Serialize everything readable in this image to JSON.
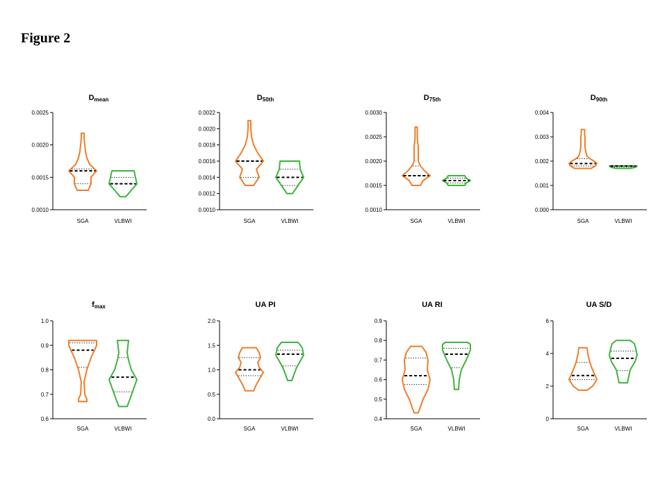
{
  "figure_title": "Figure 2",
  "colors": {
    "sga": "#f07d28",
    "vlbwi": "#3cb43c",
    "axis": "#000000"
  },
  "chart_data": [
    {
      "type": "violin",
      "title": "D",
      "title_sub": "mean",
      "ylim": [
        0.001,
        0.0025
      ],
      "yticks": [
        "0.0010",
        "0.0015",
        "0.0020",
        "0.0025"
      ],
      "categories": [
        "SGA",
        "VLBWI"
      ],
      "series": [
        {
          "name": "SGA",
          "min": 0.0013,
          "max": 0.00218,
          "q1": 0.0014,
          "median": 0.0016,
          "q3": 0.00163,
          "profile": [
            [
              0.0013,
              0.4
            ],
            [
              0.00135,
              0.5
            ],
            [
              0.0014,
              0.6
            ],
            [
              0.0015,
              0.6
            ],
            [
              0.0016,
              1.0
            ],
            [
              0.0017,
              0.5
            ],
            [
              0.0018,
              0.3
            ],
            [
              0.0019,
              0.2
            ],
            [
              0.002,
              0.15
            ],
            [
              0.0021,
              0.1
            ],
            [
              0.00218,
              0.1
            ]
          ]
        },
        {
          "name": "VLBWI",
          "min": 0.0012,
          "max": 0.0016,
          "q1": 0.0014,
          "median": 0.0014,
          "q3": 0.0015,
          "profile": [
            [
              0.0012,
              0.2
            ],
            [
              0.0013,
              0.6
            ],
            [
              0.0014,
              1.0
            ],
            [
              0.0015,
              0.9
            ],
            [
              0.0016,
              0.8
            ]
          ]
        }
      ]
    },
    {
      "type": "violin",
      "title": "D",
      "title_sub": "50th",
      "ylim": [
        0.001,
        0.0022
      ],
      "yticks": [
        "0.0010",
        "0.0012",
        "0.0014",
        "0.0016",
        "0.0018",
        "0.0020",
        "0.0022"
      ],
      "categories": [
        "SGA",
        "VLBWI"
      ],
      "series": [
        {
          "name": "SGA",
          "min": 0.0013,
          "max": 0.0021,
          "q1": 0.0014,
          "median": 0.0016,
          "q3": 0.0016,
          "profile": [
            [
              0.0013,
              0.3
            ],
            [
              0.00135,
              0.5
            ],
            [
              0.0014,
              0.7
            ],
            [
              0.0015,
              0.5
            ],
            [
              0.0016,
              1.0
            ],
            [
              0.0017,
              0.6
            ],
            [
              0.0018,
              0.3
            ],
            [
              0.0019,
              0.15
            ],
            [
              0.002,
              0.1
            ],
            [
              0.0021,
              0.1
            ]
          ]
        },
        {
          "name": "VLBWI",
          "min": 0.0012,
          "max": 0.0016,
          "q1": 0.0013,
          "median": 0.0014,
          "q3": 0.0015,
          "profile": [
            [
              0.0012,
              0.2
            ],
            [
              0.0013,
              0.6
            ],
            [
              0.0014,
              1.0
            ],
            [
              0.0015,
              0.75
            ],
            [
              0.0016,
              0.7
            ]
          ]
        }
      ]
    },
    {
      "type": "violin",
      "title": "D",
      "title_sub": "75th",
      "ylim": [
        0.001,
        0.003
      ],
      "yticks": [
        "0.0010",
        "0.0015",
        "0.0020",
        "0.0025",
        "0.0030"
      ],
      "categories": [
        "SGA",
        "VLBWI"
      ],
      "series": [
        {
          "name": "SGA",
          "min": 0.0015,
          "max": 0.0027,
          "q1": 0.0017,
          "median": 0.0017,
          "q3": 0.0019,
          "profile": [
            [
              0.0015,
              0.3
            ],
            [
              0.0016,
              0.5
            ],
            [
              0.0017,
              1.0
            ],
            [
              0.0018,
              0.6
            ],
            [
              0.0019,
              0.3
            ],
            [
              0.002,
              0.15
            ],
            [
              0.0021,
              0.15
            ],
            [
              0.0022,
              0.15
            ],
            [
              0.0023,
              0.15
            ],
            [
              0.0024,
              0.1
            ],
            [
              0.0025,
              0.08
            ],
            [
              0.0026,
              0.08
            ],
            [
              0.0027,
              0.08
            ]
          ]
        },
        {
          "name": "VLBWI",
          "min": 0.0015,
          "max": 0.0017,
          "q1": 0.00155,
          "median": 0.0016,
          "q3": 0.00165,
          "profile": [
            [
              0.0015,
              0.6
            ],
            [
              0.00155,
              0.7
            ],
            [
              0.0016,
              1.0
            ],
            [
              0.00165,
              0.7
            ],
            [
              0.0017,
              0.6
            ]
          ]
        }
      ]
    },
    {
      "type": "violin",
      "title": "D",
      "title_sub": "90th",
      "ylim": [
        0,
        0.004
      ],
      "yticks": [
        "0.000",
        "0.001",
        "0.002",
        "0.003",
        "0.004"
      ],
      "categories": [
        "SGA",
        "VLBWI"
      ],
      "series": [
        {
          "name": "SGA",
          "min": 0.0017,
          "max": 0.0033,
          "q1": 0.0018,
          "median": 0.0019,
          "q3": 0.0021,
          "profile": [
            [
              0.0017,
              0.6
            ],
            [
              0.0018,
              0.9
            ],
            [
              0.0019,
              1.0
            ],
            [
              0.002,
              0.8
            ],
            [
              0.0021,
              0.5
            ],
            [
              0.0022,
              0.3
            ],
            [
              0.0024,
              0.2
            ],
            [
              0.0026,
              0.15
            ],
            [
              0.0028,
              0.15
            ],
            [
              0.003,
              0.15
            ],
            [
              0.0031,
              0.12
            ],
            [
              0.0033,
              0.12
            ]
          ]
        },
        {
          "name": "VLBWI",
          "min": 0.0017,
          "max": 0.0018,
          "q1": 0.00175,
          "median": 0.0018,
          "q3": 0.0018,
          "profile": [
            [
              0.0017,
              0.5
            ],
            [
              0.00175,
              0.9
            ],
            [
              0.0018,
              1.0
            ]
          ]
        }
      ]
    },
    {
      "type": "violin",
      "title": "f",
      "title_sub": "max",
      "ylim": [
        0.6,
        1.0
      ],
      "yticks": [
        "0.6",
        "0.7",
        "0.8",
        "0.9",
        "1.0"
      ],
      "categories": [
        "SGA",
        "VLBWI"
      ],
      "series": [
        {
          "name": "SGA",
          "min": 0.67,
          "max": 0.92,
          "q1": 0.81,
          "median": 0.88,
          "q3": 0.91,
          "profile": [
            [
              0.67,
              0.3
            ],
            [
              0.68,
              0.3
            ],
            [
              0.7,
              0.15
            ],
            [
              0.75,
              0.1
            ],
            [
              0.8,
              0.3
            ],
            [
              0.85,
              0.6
            ],
            [
              0.88,
              0.85
            ],
            [
              0.9,
              1.0
            ],
            [
              0.92,
              1.0
            ]
          ]
        },
        {
          "name": "VLBWI",
          "min": 0.65,
          "max": 0.92,
          "q1": 0.71,
          "median": 0.77,
          "q3": 0.85,
          "profile": [
            [
              0.65,
              0.3
            ],
            [
              0.68,
              0.5
            ],
            [
              0.72,
              0.75
            ],
            [
              0.76,
              1.0
            ],
            [
              0.8,
              0.6
            ],
            [
              0.84,
              0.4
            ],
            [
              0.87,
              0.3
            ],
            [
              0.92,
              0.4
            ]
          ]
        }
      ]
    },
    {
      "type": "violin",
      "title": "UA PI",
      "title_sub": "",
      "ylim": [
        0,
        2.0
      ],
      "yticks": [
        "0.0",
        "0.5",
        "1.0",
        "1.5",
        "2.0"
      ],
      "categories": [
        "SGA",
        "VLBWI"
      ],
      "series": [
        {
          "name": "SGA",
          "min": 0.57,
          "max": 1.45,
          "q1": 0.88,
          "median": 1.0,
          "q3": 1.25,
          "profile": [
            [
              0.57,
              0.3
            ],
            [
              0.7,
              0.5
            ],
            [
              0.85,
              0.8
            ],
            [
              0.95,
              1.0
            ],
            [
              1.05,
              0.7
            ],
            [
              1.15,
              0.6
            ],
            [
              1.25,
              0.8
            ],
            [
              1.35,
              0.7
            ],
            [
              1.45,
              0.5
            ]
          ]
        },
        {
          "name": "VLBWI",
          "min": 0.78,
          "max": 1.56,
          "q1": 1.08,
          "median": 1.32,
          "q3": 1.4,
          "profile": [
            [
              0.78,
              0.15
            ],
            [
              0.9,
              0.3
            ],
            [
              1.05,
              0.5
            ],
            [
              1.2,
              0.8
            ],
            [
              1.3,
              1.0
            ],
            [
              1.45,
              0.9
            ],
            [
              1.56,
              0.6
            ]
          ]
        }
      ]
    },
    {
      "type": "violin",
      "title": "UA RI",
      "title_sub": "",
      "ylim": [
        0.4,
        0.9
      ],
      "yticks": [
        "0.4",
        "0.5",
        "0.6",
        "0.7",
        "0.8",
        "0.9"
      ],
      "categories": [
        "SGA",
        "VLBWI"
      ],
      "series": [
        {
          "name": "SGA",
          "min": 0.43,
          "max": 0.77,
          "q1": 0.575,
          "median": 0.62,
          "q3": 0.71,
          "profile": [
            [
              0.43,
              0.15
            ],
            [
              0.46,
              0.3
            ],
            [
              0.5,
              0.5
            ],
            [
              0.55,
              0.85
            ],
            [
              0.6,
              1.0
            ],
            [
              0.65,
              0.8
            ],
            [
              0.7,
              0.85
            ],
            [
              0.74,
              0.7
            ],
            [
              0.77,
              0.4
            ]
          ]
        },
        {
          "name": "VLBWI",
          "min": 0.55,
          "max": 0.79,
          "q1": 0.66,
          "median": 0.73,
          "q3": 0.76,
          "profile": [
            [
              0.55,
              0.15
            ],
            [
              0.6,
              0.2
            ],
            [
              0.65,
              0.35
            ],
            [
              0.7,
              0.7
            ],
            [
              0.75,
              1.0
            ],
            [
              0.78,
              1.0
            ],
            [
              0.79,
              0.8
            ]
          ]
        }
      ]
    },
    {
      "type": "violin",
      "title": "UA S/D",
      "title_sub": "",
      "ylim": [
        0,
        6
      ],
      "yticks": [
        "0",
        "2",
        "4",
        "6"
      ],
      "categories": [
        "SGA",
        "VLBWI"
      ],
      "series": [
        {
          "name": "SGA",
          "min": 1.75,
          "max": 4.35,
          "q1": 2.4,
          "median": 2.65,
          "q3": 3.45,
          "profile": [
            [
              1.75,
              0.3
            ],
            [
              2.0,
              0.7
            ],
            [
              2.4,
              1.0
            ],
            [
              2.8,
              0.8
            ],
            [
              3.2,
              0.6
            ],
            [
              3.6,
              0.45
            ],
            [
              4.0,
              0.35
            ],
            [
              4.35,
              0.3
            ]
          ]
        },
        {
          "name": "VLBWI",
          "min": 2.2,
          "max": 4.8,
          "q1": 2.95,
          "median": 3.7,
          "q3": 4.15,
          "profile": [
            [
              2.2,
              0.3
            ],
            [
              2.6,
              0.4
            ],
            [
              3.0,
              0.5
            ],
            [
              3.5,
              0.85
            ],
            [
              3.9,
              1.0
            ],
            [
              4.3,
              0.9
            ],
            [
              4.6,
              0.8
            ],
            [
              4.8,
              0.5
            ]
          ]
        }
      ]
    }
  ]
}
